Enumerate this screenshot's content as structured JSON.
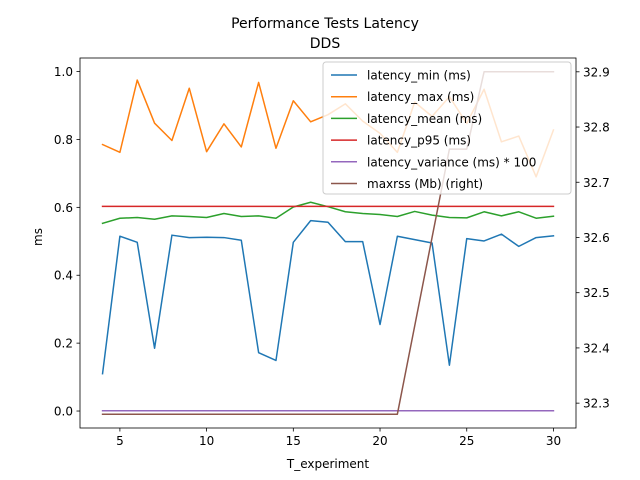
{
  "chart_data": {
    "type": "line",
    "title": "Performance Tests Latency",
    "subtitle": "DDS",
    "xlabel": "T_experiment",
    "ylabel": "ms",
    "xlim": [
      2.7,
      31.3
    ],
    "ylim": [
      -0.05,
      1.04
    ],
    "y2lim": [
      32.255,
      32.925
    ],
    "x_ticks": [
      5,
      10,
      15,
      20,
      25,
      30
    ],
    "y_ticks": [
      0.0,
      0.2,
      0.4,
      0.6,
      0.8,
      1.0
    ],
    "y_tick_labels": [
      "0.0",
      "0.2",
      "0.4",
      "0.6",
      "0.8",
      "1.0"
    ],
    "y2_ticks": [
      32.3,
      32.4,
      32.5,
      32.6,
      32.7,
      32.8,
      32.9
    ],
    "y2_tick_labels": [
      "32.3",
      "32.4",
      "32.5",
      "32.6",
      "32.7",
      "32.8",
      "32.9"
    ],
    "legend_position": "top-right",
    "grid": false,
    "x": [
      4,
      5,
      6,
      7,
      8,
      9,
      10,
      11,
      12,
      13,
      14,
      15,
      16,
      17,
      18,
      19,
      20,
      21,
      22,
      23,
      24,
      25,
      26,
      27,
      28,
      29,
      30
    ],
    "series": [
      {
        "name": "latency_min (ms)",
        "color": "#1f77b4",
        "axis": "left",
        "values": [
          0.11,
          0.515,
          0.497,
          0.185,
          0.518,
          0.511,
          0.512,
          0.511,
          0.503,
          0.172,
          0.149,
          0.497,
          0.561,
          0.556,
          0.499,
          0.499,
          0.255,
          0.515,
          0.505,
          0.495,
          0.135,
          0.508,
          0.501,
          0.521,
          0.485,
          0.511,
          0.516
        ]
      },
      {
        "name": "latency_max (ms)",
        "color": "#ff7f0e",
        "axis": "left",
        "values": [
          0.785,
          0.762,
          0.975,
          0.848,
          0.797,
          0.951,
          0.764,
          0.846,
          0.778,
          0.968,
          0.774,
          0.914,
          0.852,
          0.873,
          0.905,
          0.854,
          0.818,
          0.762,
          0.91,
          0.868,
          0.926,
          0.847,
          0.948,
          0.793,
          0.81,
          0.69,
          0.828
        ]
      },
      {
        "name": "latency_mean (ms)",
        "color": "#2ca02c",
        "axis": "left",
        "values": [
          0.553,
          0.568,
          0.57,
          0.565,
          0.575,
          0.573,
          0.57,
          0.582,
          0.573,
          0.575,
          0.568,
          0.601,
          0.615,
          0.602,
          0.587,
          0.582,
          0.579,
          0.573,
          0.588,
          0.577,
          0.57,
          0.569,
          0.587,
          0.575,
          0.587,
          0.568,
          0.574
        ]
      },
      {
        "name": "latency_p95 (ms)",
        "color": "#d62728",
        "axis": "left",
        "values": [
          0.603,
          0.603,
          0.603,
          0.603,
          0.603,
          0.603,
          0.603,
          0.603,
          0.603,
          0.603,
          0.603,
          0.603,
          0.603,
          0.603,
          0.603,
          0.603,
          0.603,
          0.603,
          0.603,
          0.603,
          0.603,
          0.603,
          0.603,
          0.603,
          0.603,
          0.603,
          0.603
        ]
      },
      {
        "name": "latency_variance (ms) * 100",
        "color": "#9467bd",
        "axis": "left",
        "values": [
          0.001,
          0.001,
          0.001,
          0.001,
          0.001,
          0.001,
          0.001,
          0.001,
          0.001,
          0.001,
          0.001,
          0.001,
          0.001,
          0.001,
          0.001,
          0.001,
          0.001,
          0.001,
          0.001,
          0.001,
          0.001,
          0.001,
          0.001,
          0.001,
          0.001,
          0.001,
          0.001
        ]
      },
      {
        "name": "maxrss (Mb) (right)",
        "color": "#8c564b",
        "axis": "right",
        "values": [
          32.28,
          32.28,
          32.28,
          32.28,
          32.28,
          32.28,
          32.28,
          32.28,
          32.28,
          32.28,
          32.28,
          32.28,
          32.28,
          32.28,
          32.28,
          32.28,
          32.28,
          32.28,
          32.44,
          32.6,
          32.76,
          32.76,
          32.9,
          32.9,
          32.9,
          32.9,
          32.9
        ]
      }
    ]
  }
}
